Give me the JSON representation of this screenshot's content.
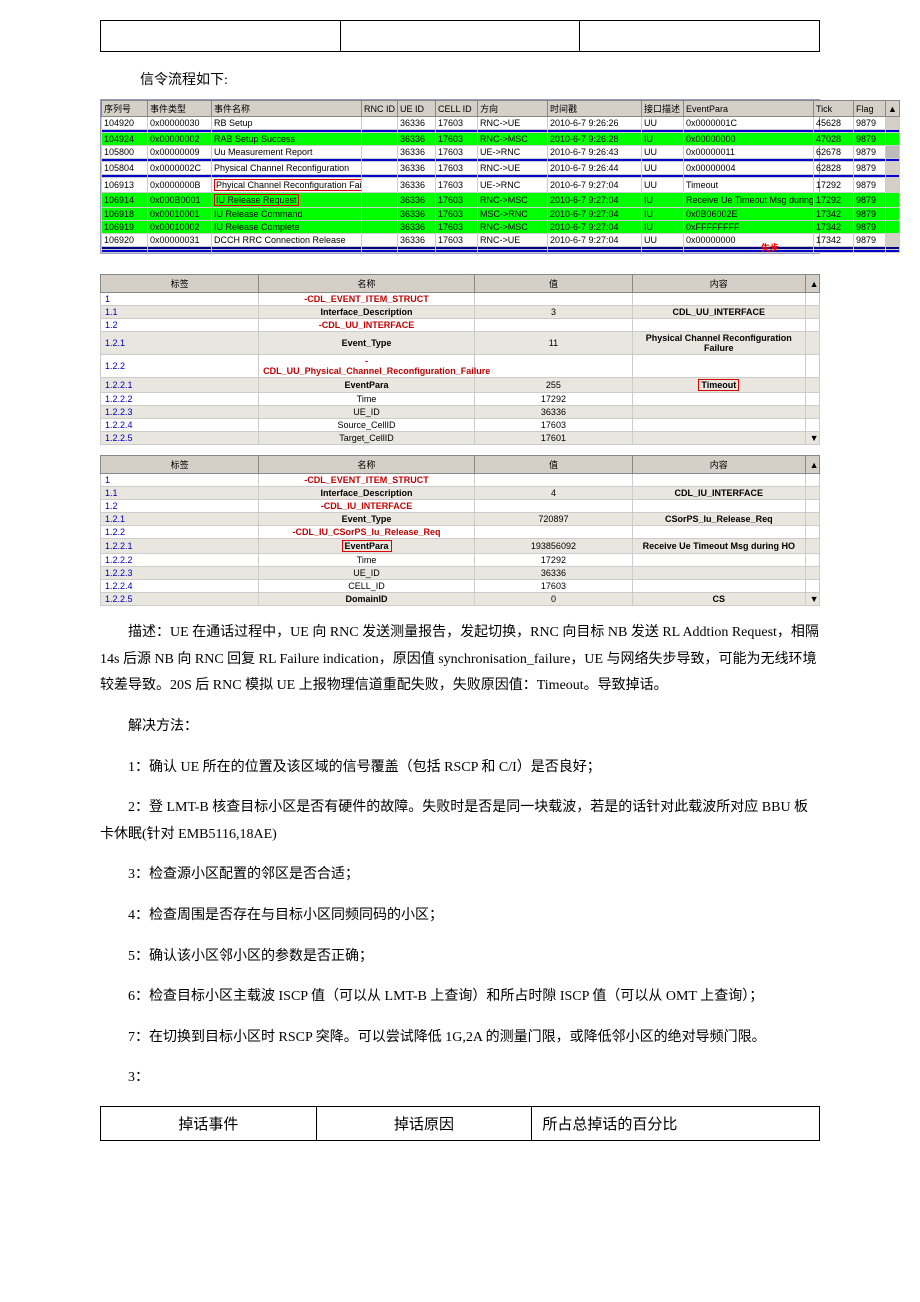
{
  "intro_line": "信令流程如下:",
  "sig_headers": [
    "序列号",
    "事件类型",
    "事件名称",
    "RNC ID",
    "UE ID",
    "CELL ID",
    "方向",
    "时间戳",
    "接口描述",
    "EventPara",
    "Tick",
    "Flag"
  ],
  "sig_rows": [
    {
      "cls": "",
      "mark": false,
      "c": [
        "104920",
        "0x00000030",
        "RB Setup",
        "",
        "36336",
        "17603",
        "RNC->UE",
        "2010-6-7 9:26:26",
        "UU",
        "0x0000001C",
        "45628",
        "9879"
      ]
    },
    {
      "cls": "hl-blue",
      "mark": false,
      "c": [
        "",
        "",
        "",
        "",
        "",
        "",
        "",
        "",
        "",
        "",
        "",
        ""
      ]
    },
    {
      "cls": "hl-green",
      "mark": false,
      "c": [
        "104924",
        "0x00000002",
        "RAB Setup Success",
        "",
        "36336",
        "17603",
        "RNC->MSC",
        "2010-6-7 9:26:28",
        "IU",
        "0x00000000",
        "47028",
        "9879"
      ]
    },
    {
      "cls": "",
      "mark": false,
      "c": [
        "105800",
        "0x00000009",
        "Uu Measurement Report",
        "",
        "36336",
        "17603",
        "UE->RNC",
        "2010-6-7 9:26:43",
        "UU",
        "0x00000011",
        "62678",
        "9879"
      ]
    },
    {
      "cls": "hl-blue",
      "mark": false,
      "c": [
        "",
        "",
        "",
        "",
        "",
        "",
        "",
        "",
        "",
        "",
        "",
        ""
      ]
    },
    {
      "cls": "",
      "mark": false,
      "c": [
        "105804",
        "0x0000002C",
        "Physical Channel Reconfiguration",
        "",
        "36336",
        "17603",
        "RNC->UE",
        "2010-6-7 9:26:44",
        "UU",
        "0x00000004",
        "62828",
        "9879"
      ],
      "ann_right": "失步"
    },
    {
      "cls": "hl-blue",
      "mark": false,
      "c": [
        "",
        "",
        "",
        "",
        "",
        "",
        "",
        "",
        "",
        "",
        "",
        ""
      ]
    },
    {
      "cls": "",
      "mark": true,
      "c": [
        "106913",
        "0x0000000B",
        "Phyical Channel Reconfiguration Failure",
        "",
        "36336",
        "17603",
        "UE->RNC",
        "2010-6-7 9:27:04",
        "UU",
        "Timeout",
        "17292",
        "9879"
      ],
      "red_name": true
    },
    {
      "cls": "hl-green",
      "mark": false,
      "c": [
        "106914",
        "0x000B0001",
        "IU Release Request",
        "",
        "36336",
        "17603",
        "RNC->MSC",
        "2010-6-7 9:27:04",
        "IU",
        "Receive Ue Timeout Msg during HO",
        "17292",
        "9879"
      ],
      "red_name": true,
      "ann_left": "超"
    },
    {
      "cls": "hl-green",
      "mark": false,
      "c": [
        "106918",
        "0x00010001",
        "IU Release Command",
        "",
        "36336",
        "17603",
        "MSC->RNC",
        "2010-6-7 9:27:04",
        "IU",
        "0x0B06002E",
        "17342",
        "9879"
      ]
    },
    {
      "cls": "hl-green",
      "mark": false,
      "c": [
        "106919",
        "0x00010002",
        "IU Release Complete",
        "",
        "36336",
        "17603",
        "RNC->MSC",
        "2010-6-7 9:27:04",
        "IU",
        "0xFFFFFFFF",
        "17342",
        "9879"
      ]
    },
    {
      "cls": "",
      "mark": false,
      "c": [
        "106920",
        "0x00000031",
        "DCCH RRC Connection Release",
        "",
        "36336",
        "17603",
        "RNC->UE",
        "2010-6-7 9:27:04",
        "UU",
        "0x00000000",
        "17342",
        "9879"
      ]
    },
    {
      "cls": "hl-navy",
      "mark": false,
      "c": [
        "",
        "",
        "",
        "",
        "",
        "",
        "",
        "",
        "",
        "",
        "",
        ""
      ]
    },
    {
      "cls": "hl-blue",
      "mark": false,
      "c": [
        "",
        "",
        "",
        "",
        "",
        "",
        "",
        "",
        "",
        "",
        "",
        ""
      ]
    }
  ],
  "detail_headers": [
    "标签",
    "名称",
    "值",
    "内容"
  ],
  "panel1": [
    {
      "cls": "",
      "c": [
        "1",
        "-CDL_EVENT_ITEM_STRUCT",
        "",
        ""
      ],
      "name_cls": "red-text"
    },
    {
      "cls": "band",
      "c": [
        "1.1",
        "Interface_Description",
        "3",
        "CDL_UU_INTERFACE"
      ],
      "name_cls": "bold-text",
      "v4_cls": "bold-text"
    },
    {
      "cls": "",
      "c": [
        "1.2",
        "-CDL_UU_INTERFACE",
        "",
        ""
      ],
      "name_cls": "red-text"
    },
    {
      "cls": "band",
      "c": [
        "1.2.1",
        "Event_Type",
        "11",
        "Physical Channel Reconfiguration Failure"
      ],
      "name_cls": "bold-text",
      "v4_cls": "bold-text"
    },
    {
      "cls": "",
      "c": [
        "1.2.2",
        "-CDL_UU_Physical_Channel_Reconfiguration_Failure",
        "",
        ""
      ],
      "name_cls": "red-text"
    },
    {
      "cls": "band",
      "c": [
        "1.2.2.1",
        "EventPara",
        "255",
        "Timeout"
      ],
      "name_cls": "bold-text",
      "v4_box": true
    },
    {
      "cls": "",
      "c": [
        "1.2.2.2",
        "Time",
        "17292",
        ""
      ]
    },
    {
      "cls": "band",
      "c": [
        "1.2.2.3",
        "UE_ID",
        "36336",
        ""
      ]
    },
    {
      "cls": "",
      "c": [
        "1.2.2.4",
        "Source_CellID",
        "17603",
        ""
      ]
    },
    {
      "cls": "band",
      "c": [
        "1.2.2.5",
        "Target_CellID",
        "17601",
        ""
      ]
    }
  ],
  "panel2": [
    {
      "cls": "",
      "c": [
        "1",
        "-CDL_EVENT_ITEM_STRUCT",
        "",
        ""
      ],
      "name_cls": "red-text"
    },
    {
      "cls": "band",
      "c": [
        "1.1",
        "Interface_Description",
        "4",
        "CDL_IU_INTERFACE"
      ],
      "name_cls": "bold-text",
      "v4_cls": "bold-text"
    },
    {
      "cls": "",
      "c": [
        "1.2",
        "-CDL_IU_INTERFACE",
        "",
        ""
      ],
      "name_cls": "red-text"
    },
    {
      "cls": "band",
      "c": [
        "1.2.1",
        "Event_Type",
        "720897",
        "CSorPS_Iu_Release_Req"
      ],
      "name_cls": "bold-text",
      "v4_cls": "bold-text"
    },
    {
      "cls": "",
      "c": [
        "1.2.2",
        "-CDL_IU_CSorPS_Iu_Release_Req",
        "",
        ""
      ],
      "name_cls": "red-text"
    },
    {
      "cls": "band",
      "c": [
        "1.2.2.1",
        "EventPara",
        "193856092",
        "Receive Ue Timeout Msg during HO"
      ],
      "name_box": true,
      "v4_cls": "bold-text"
    },
    {
      "cls": "",
      "c": [
        "1.2.2.2",
        "Time",
        "17292",
        ""
      ]
    },
    {
      "cls": "band",
      "c": [
        "1.2.2.3",
        "UE_ID",
        "36336",
        ""
      ]
    },
    {
      "cls": "",
      "c": [
        "1.2.2.4",
        "CELL_ID",
        "17603",
        ""
      ]
    },
    {
      "cls": "band",
      "c": [
        "1.2.2.5",
        "DomainID",
        "0",
        "CS"
      ],
      "name_cls": "bold-text",
      "v4_cls": "bold-text"
    }
  ],
  "desc": "描述：UE 在通话过程中，UE 向 RNC 发送测量报告，发起切换，RNC 向目标 NB 发送 RL Addtion Request，相隔 14s 后源 NB 向 RNC 回复 RL Failure indication，原因值 synchronisation_failure，UE 与网络失步导致，可能为无线环境较差导致。20S 后 RNC 模拟 UE 上报物理信道重配失败，失败原因值：Timeout。导致掉话。",
  "solution_title": "解决方法：",
  "steps": [
    "1：确认 UE 所在的位置及该区域的信号覆盖（包括 RSCP 和 C/I）是否良好；",
    "2：登 LMT-B 核查目标小区是否有硬件的故障。失败时是否是同一块载波，若是的话针对此载波所对应 BBU 板卡休眠(针对 EMB5116,18AE)",
    "3：检查源小区配置的邻区是否合适；",
    "4：检查周围是否存在与目标小区同频同码的小区；",
    "5：确认该小区邻小区的参数是否正确；",
    "6：检查目标小区主载波 ISCP 值（可以从 LMT-B 上查询）和所占时隙 ISCP 值（可以从 OMT 上查询）；",
    "7：在切换到目标小区时 RSCP 突降。可以尝试降低 1G,2A 的测量门限，或降低邻小区的绝对导频门限。"
  ],
  "three_colon": "3：",
  "bottom_headers": [
    "掉话事件",
    "掉话原因",
    "所占总掉话的百分比"
  ],
  "col_widths": [
    "46",
    "64",
    "150",
    "36",
    "38",
    "42",
    "70",
    "94",
    "42",
    "130",
    "40",
    "32",
    "14"
  ]
}
